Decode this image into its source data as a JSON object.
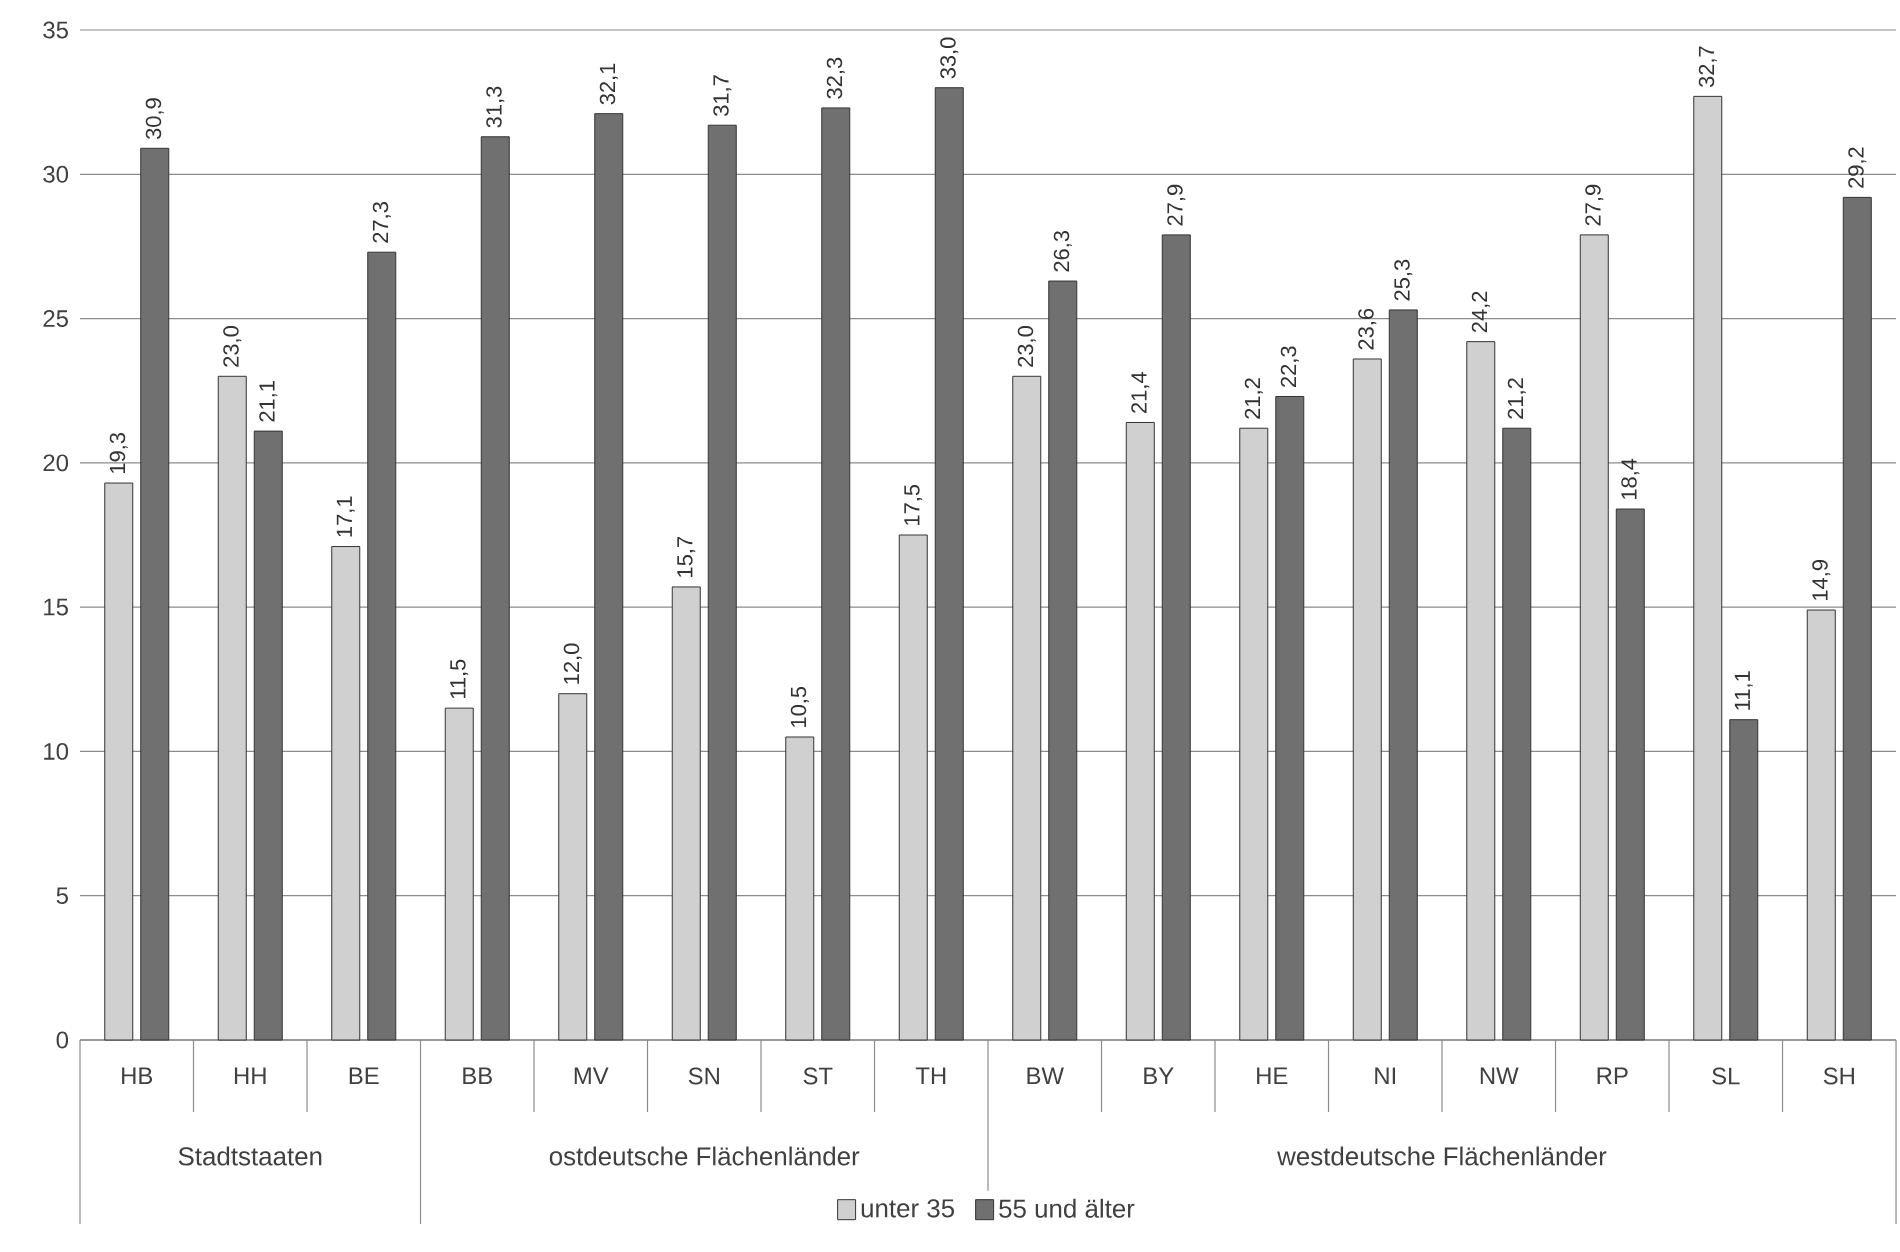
{
  "chart_data": {
    "type": "bar",
    "categories": [
      "HB",
      "HH",
      "BE",
      "BB",
      "MV",
      "SN",
      "ST",
      "TH",
      "BW",
      "BY",
      "HE",
      "NI",
      "NW",
      "RP",
      "SL",
      "SH"
    ],
    "series": [
      {
        "name": "unter 35",
        "color": "#d0d0d0",
        "values": [
          19.3,
          23.0,
          17.1,
          11.5,
          12.0,
          15.7,
          10.5,
          17.5,
          23.0,
          21.4,
          21.2,
          23.6,
          24.2,
          27.9,
          32.7,
          14.9
        ],
        "value_labels": [
          "19,3",
          "23,0",
          "17,1",
          "11,5",
          "12,0",
          "15,7",
          "10,5",
          "17,5",
          "23,0",
          "21,4",
          "21,2",
          "23,6",
          "24,2",
          "27,9",
          "32,7",
          "14,9"
        ]
      },
      {
        "name": "55 und älter",
        "color": "#707070",
        "values": [
          30.9,
          21.1,
          27.3,
          31.3,
          32.1,
          31.7,
          32.3,
          33.0,
          26.3,
          27.9,
          22.3,
          25.3,
          21.2,
          18.4,
          11.1,
          29.2
        ],
        "value_labels": [
          "30,9",
          "21,1",
          "27,3",
          "31,3",
          "32,1",
          "31,7",
          "32,3",
          "33,0",
          "26,3",
          "27,9",
          "22,3",
          "25,3",
          "21,2",
          "18,4",
          "11,1",
          "29,2"
        ]
      }
    ],
    "annotations": [
      "Stadtstaaten",
      "ostdeutsche Flächenländer",
      "westdeutsche Flächenländer"
    ],
    "ylim": [
      0,
      35
    ],
    "yticks": [
      0,
      5,
      10,
      15,
      20,
      25,
      30,
      35
    ],
    "grid": "y",
    "legend": "bottom"
  }
}
